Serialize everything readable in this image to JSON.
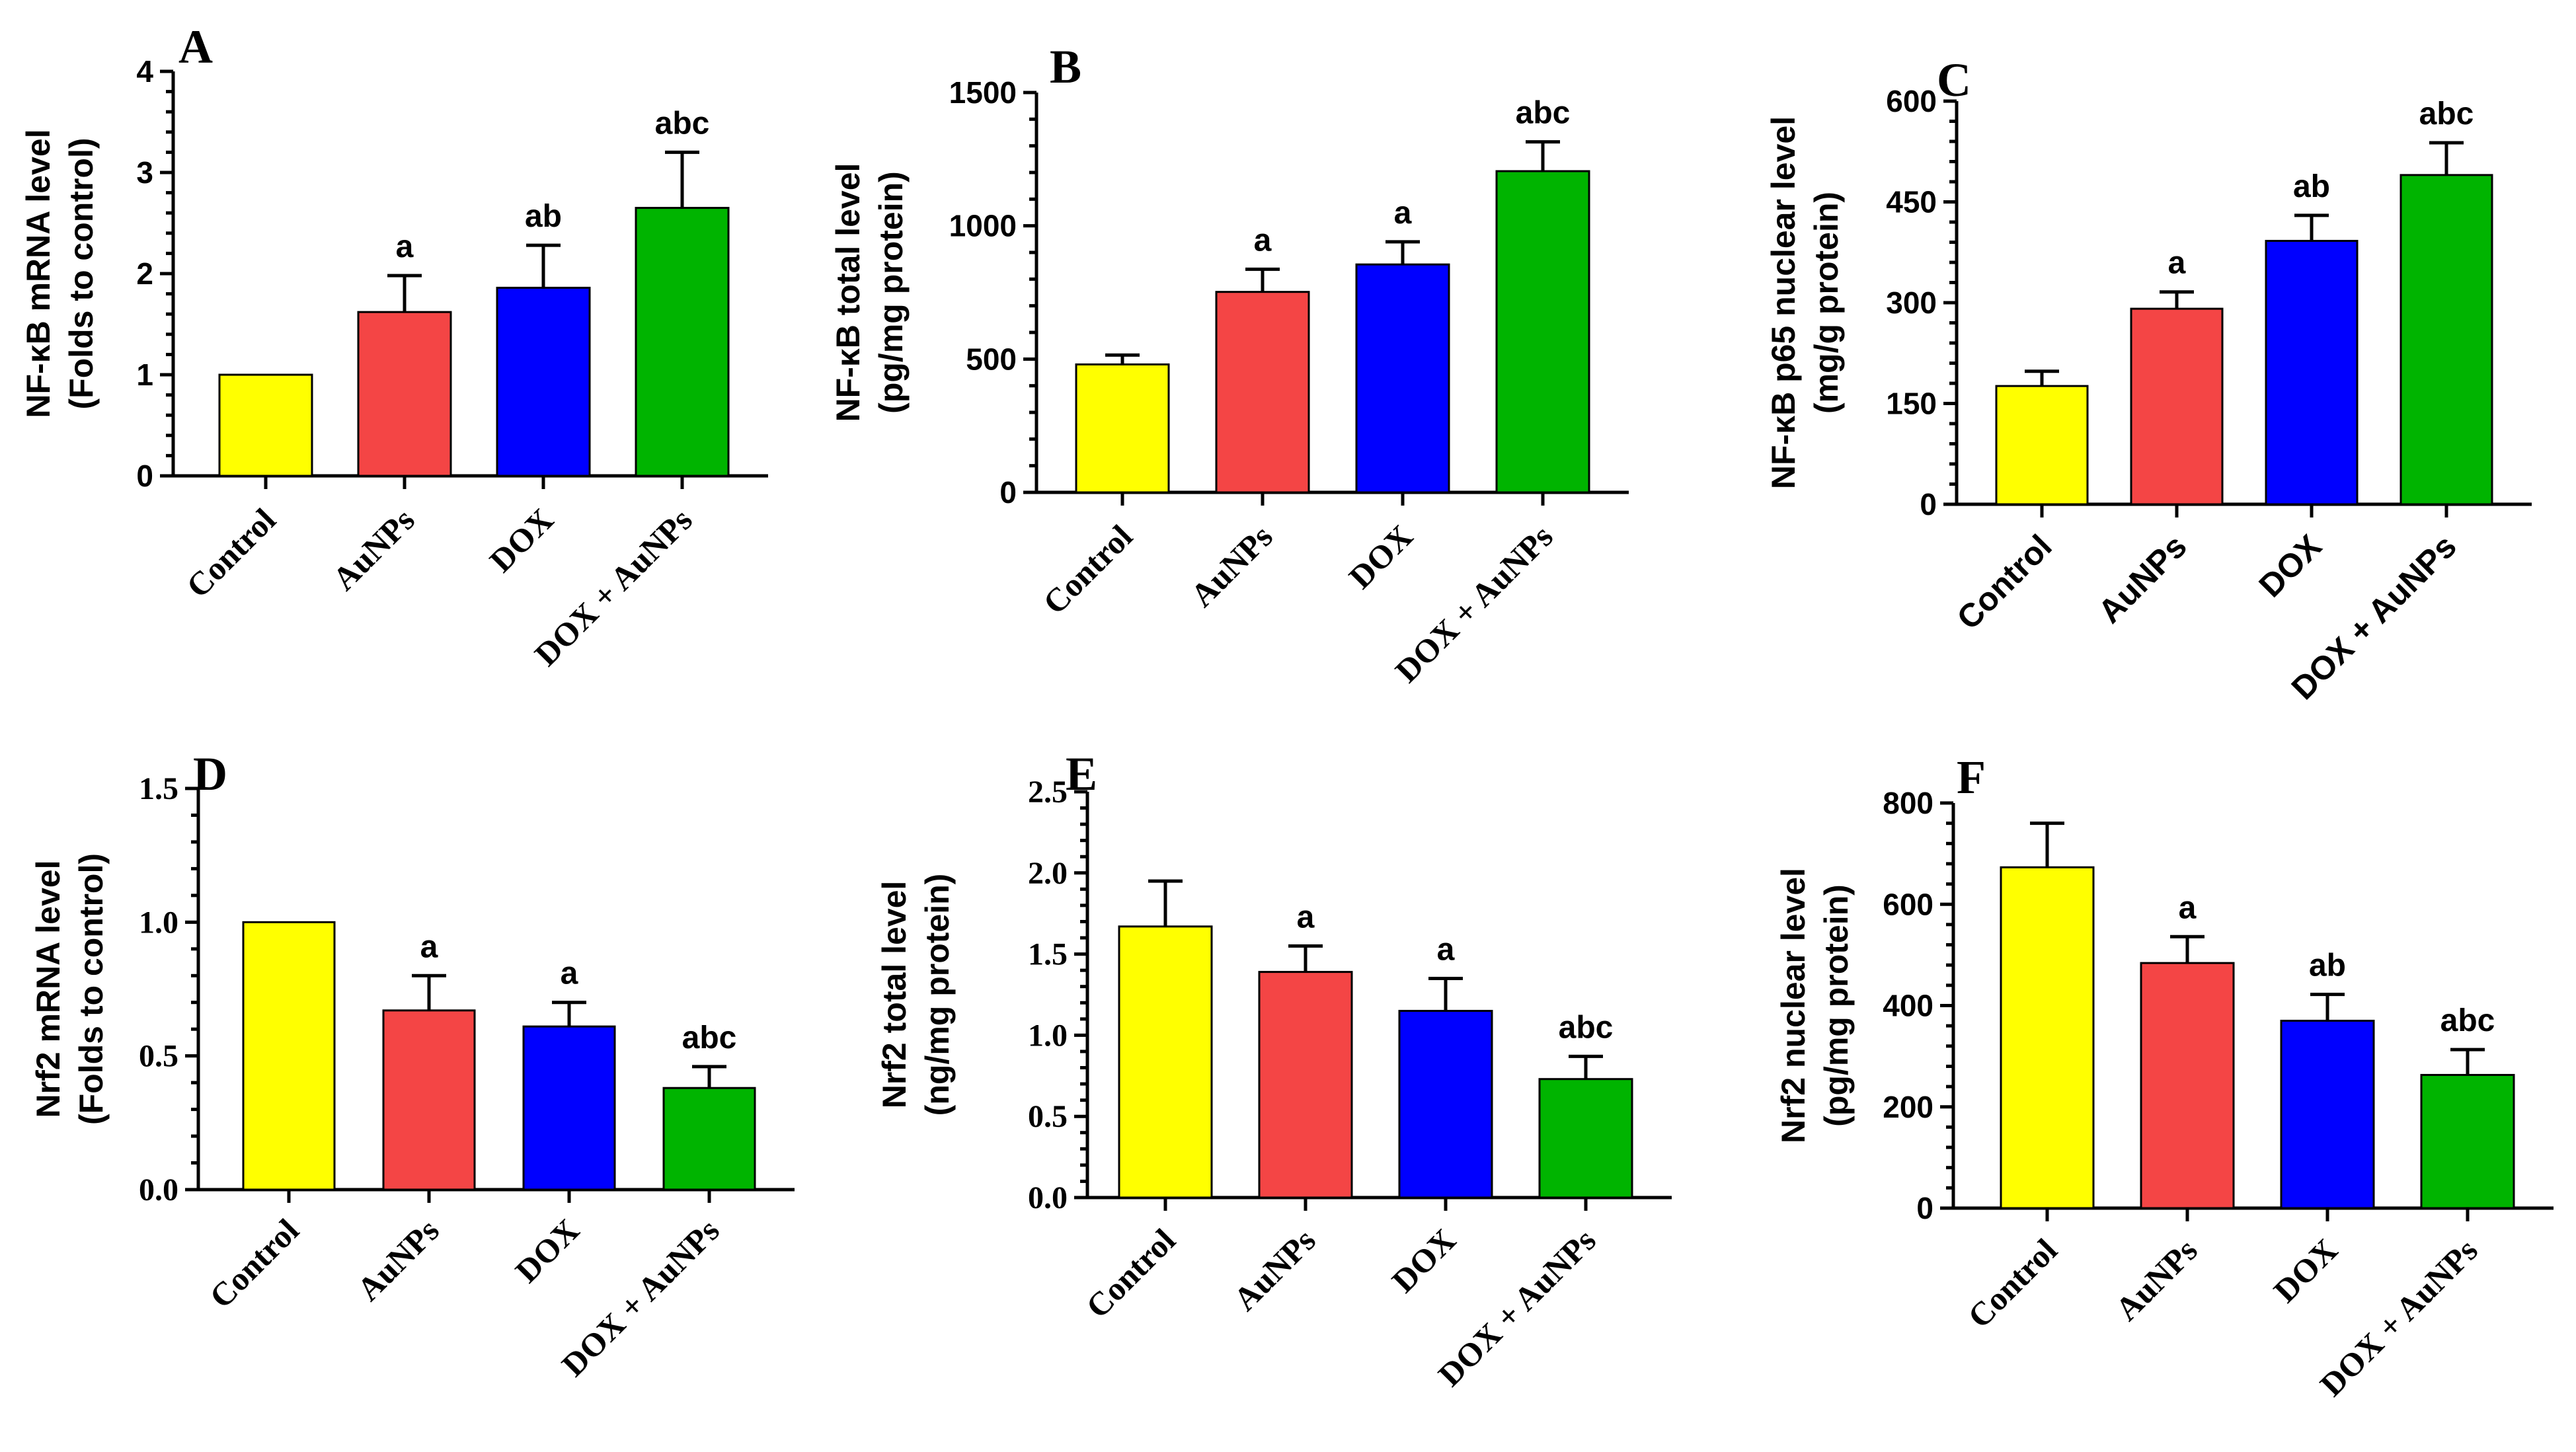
{
  "chart_data": [
    {
      "panel": "A",
      "type": "bar",
      "ylabel_lines": [
        "NF-κB mRNA level",
        "(Folds to control)"
      ],
      "categories": [
        "Control",
        "AuNPs",
        "DOX",
        "DOX + AuNPs"
      ],
      "values": [
        1.0,
        1.62,
        1.86,
        2.65
      ],
      "errors": [
        0,
        0.36,
        0.42,
        0.55
      ],
      "significance": [
        "",
        "a",
        "ab",
        "abc"
      ],
      "colors": [
        "#ffff00",
        "#f44545",
        "#0000ff",
        "#00b400"
      ],
      "ylim": [
        0,
        4
      ],
      "yticks": [
        "0",
        "1",
        "2",
        "3",
        "4"
      ],
      "grid": false
    },
    {
      "panel": "B",
      "type": "bar",
      "ylabel_lines": [
        "NF-κB total level",
        "(pg/mg protein)"
      ],
      "categories": [
        "Control",
        "AuNPs",
        "DOX",
        "DOX + AuNPs"
      ],
      "values": [
        480,
        752,
        855,
        1205
      ],
      "errors": [
        35,
        85,
        85,
        110
      ],
      "significance": [
        "",
        "a",
        "a",
        "abc"
      ],
      "colors": [
        "#ffff00",
        "#f44545",
        "#0000ff",
        "#00b400"
      ],
      "ylim": [
        0,
        1500
      ],
      "yticks": [
        "0",
        "500",
        "1000",
        "1500"
      ],
      "grid": false
    },
    {
      "panel": "C",
      "type": "bar",
      "ylabel_lines": [
        "NF-κB p65 nuclear level",
        "(mg/g protein)"
      ],
      "categories": [
        "Control",
        "AuNPs",
        "DOX",
        "DOX + AuNPs"
      ],
      "values": [
        176,
        291,
        392,
        490
      ],
      "errors": [
        22,
        25,
        38,
        48
      ],
      "significance": [
        "",
        "a",
        "ab",
        "abc"
      ],
      "colors": [
        "#ffff00",
        "#f44545",
        "#0000ff",
        "#00b400"
      ],
      "ylim": [
        0,
        600
      ],
      "yticks": [
        "0",
        "150",
        "300",
        "450",
        "600"
      ],
      "grid": false
    },
    {
      "panel": "D",
      "type": "bar",
      "ylabel_lines": [
        "Nrf2 mRNA level",
        "(Folds to control)"
      ],
      "categories": [
        "Control",
        "AuNPs",
        "DOX",
        "DOX + AuNPs"
      ],
      "values": [
        1.0,
        0.67,
        0.61,
        0.38
      ],
      "errors": [
        0,
        0.13,
        0.09,
        0.08
      ],
      "significance": [
        "",
        "a",
        "a",
        "abc"
      ],
      "colors": [
        "#ffff00",
        "#f44545",
        "#0000ff",
        "#00b400"
      ],
      "ylim": [
        0,
        1.5
      ],
      "yticks": [
        "0.0",
        "0.5",
        "1.0",
        "1.5"
      ],
      "grid": false
    },
    {
      "panel": "E",
      "type": "bar",
      "ylabel_lines": [
        "Nrf2 total level",
        "(ng/mg protein)"
      ],
      "categories": [
        "Control",
        "AuNPs",
        "DOX",
        "DOX + AuNPs"
      ],
      "values": [
        1.67,
        1.39,
        1.15,
        0.73
      ],
      "errors": [
        0.28,
        0.16,
        0.2,
        0.14
      ],
      "significance": [
        "",
        "a",
        "a",
        "abc"
      ],
      "colors": [
        "#ffff00",
        "#f44545",
        "#0000ff",
        "#00b400"
      ],
      "ylim": [
        0,
        2.5
      ],
      "yticks": [
        "0.0",
        "0.5",
        "1.0",
        "1.5",
        "2.0",
        "2.5"
      ],
      "grid": false
    },
    {
      "panel": "F",
      "type": "bar",
      "ylabel_lines": [
        "Nrf2 nuclear level",
        "(pg/mg protein)"
      ],
      "categories": [
        "Control",
        "AuNPs",
        "DOX",
        "DOX + AuNPs"
      ],
      "values": [
        673,
        484,
        370,
        263
      ],
      "errors": [
        87,
        52,
        52,
        50
      ],
      "significance": [
        "",
        "a",
        "ab",
        "abc"
      ],
      "colors": [
        "#ffff00",
        "#f44545",
        "#0000ff",
        "#00b400"
      ],
      "ylim": [
        0,
        800
      ],
      "yticks": [
        "0",
        "200",
        "400",
        "600",
        "800"
      ],
      "grid": false
    }
  ]
}
